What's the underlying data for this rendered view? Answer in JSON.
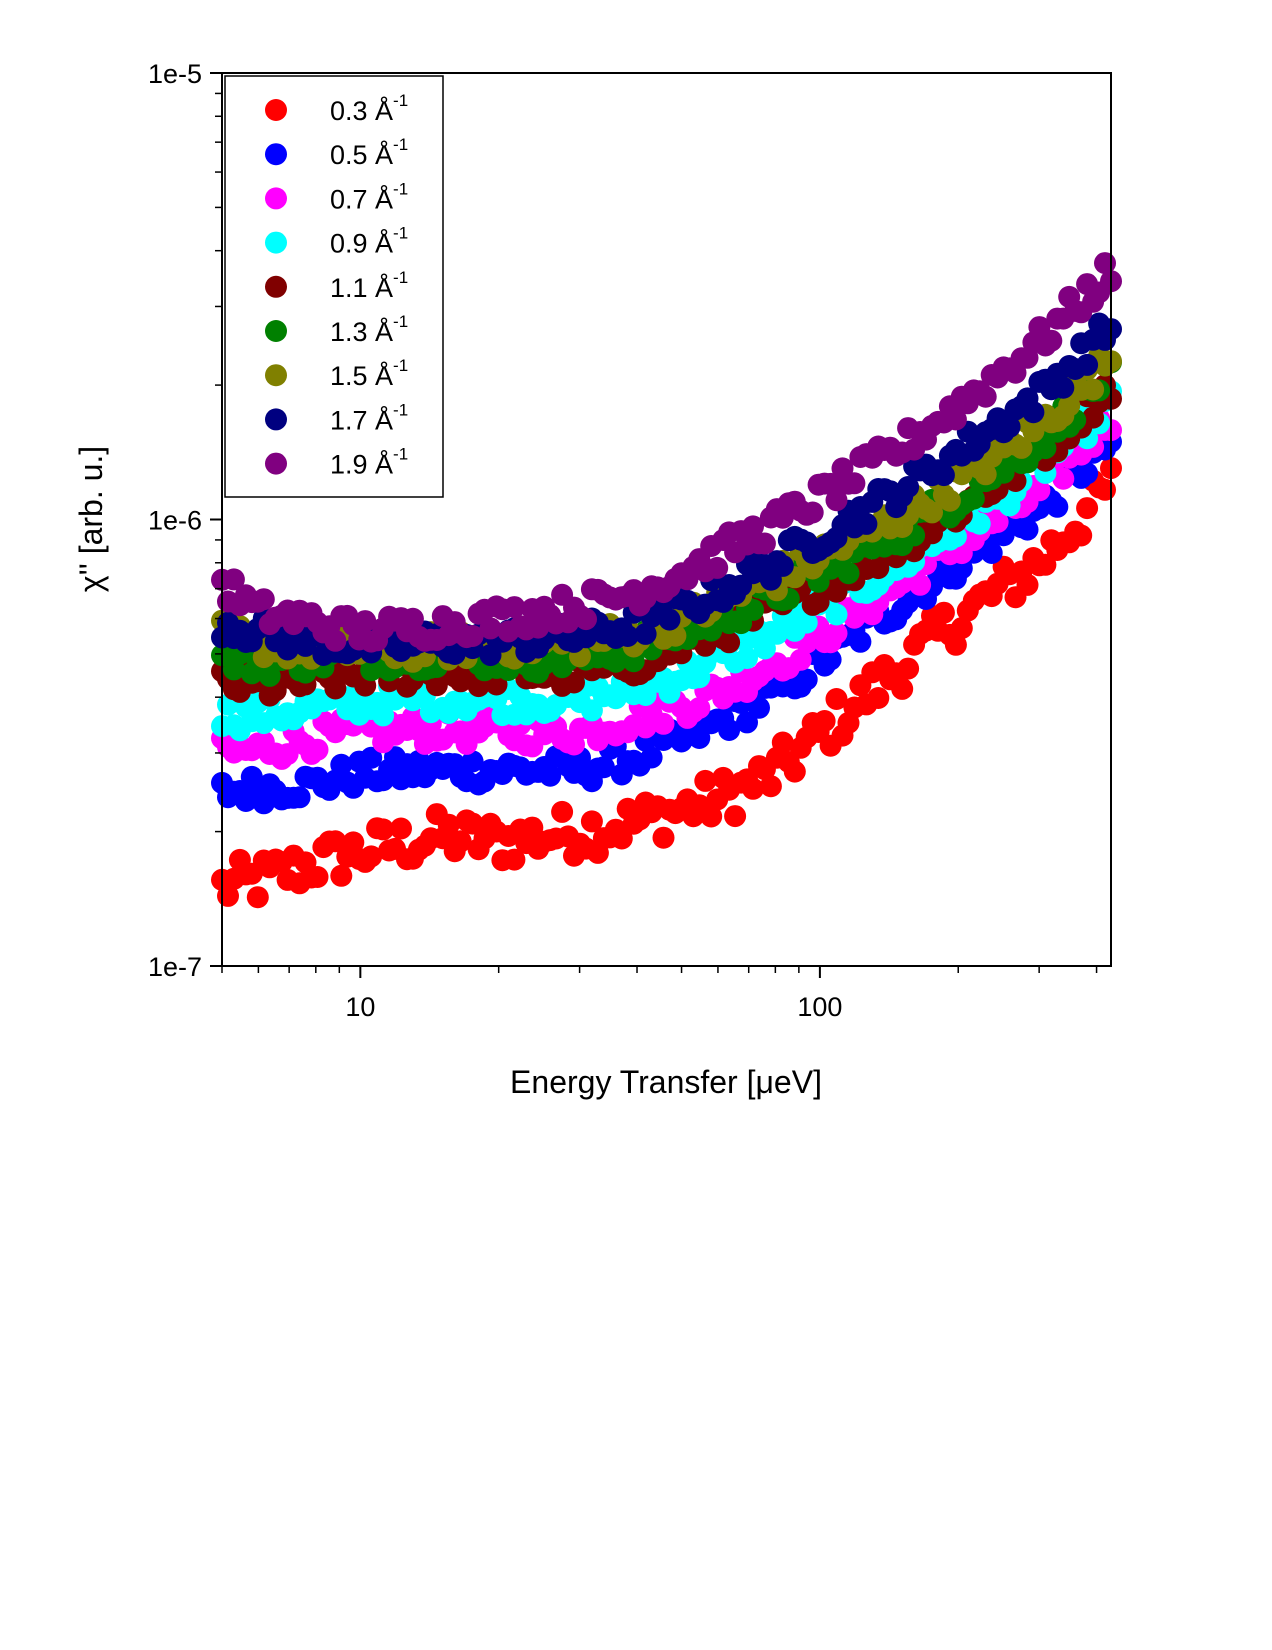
{
  "chart_data": {
    "type": "scatter",
    "xlabel": "Energy Transfer [μeV]",
    "ylabel": "χ'' [arb. u.]",
    "x_scale": "log",
    "y_scale": "log",
    "xlim": [
      5,
      430
    ],
    "ylim": [
      1e-07,
      1e-05
    ],
    "x_ticks": [
      10,
      100
    ],
    "x_tick_labels": [
      "10",
      "100"
    ],
    "y_ticks": [
      1e-07,
      1e-06,
      1e-05
    ],
    "y_tick_labels": [
      "1e-7",
      "1e-6",
      "1e-5"
    ],
    "grid": false,
    "legend_position": "top-left",
    "series": [
      {
        "name": "0.3 Å-1",
        "label_main": "0.3 Å",
        "label_sup": "-1",
        "color": "#ff0000",
        "x": [
          5,
          6,
          8,
          10,
          15,
          20,
          30,
          40,
          50,
          60,
          80,
          100,
          150,
          200,
          300,
          430
        ],
        "y": [
          1.5e-07,
          1.55e-07,
          1.7e-07,
          1.8e-07,
          1.95e-07,
          1.9e-07,
          2e-07,
          2.1e-07,
          2.25e-07,
          2.35e-07,
          2.7e-07,
          3.3e-07,
          4.7e-07,
          6e-07,
          8e-07,
          1.2e-06
        ]
      },
      {
        "name": "0.5 Å-1",
        "label_main": "0.5 Å",
        "label_sup": "-1",
        "color": "#0000ff",
        "x": [
          5,
          6,
          8,
          10,
          15,
          20,
          30,
          40,
          50,
          60,
          80,
          100,
          150,
          200,
          300,
          430
        ],
        "y": [
          2.45e-07,
          2.5e-07,
          2.55e-07,
          2.7e-07,
          2.75e-07,
          2.75e-07,
          2.75e-07,
          2.95e-07,
          3.2e-07,
          3.5e-07,
          4.1e-07,
          4.8e-07,
          6.5e-07,
          8e-07,
          1.05e-06,
          1.5e-06
        ]
      },
      {
        "name": "0.7 Å-1",
        "label_main": "0.7 Å",
        "label_sup": "-1",
        "color": "#ff00ff",
        "x": [
          5,
          6,
          8,
          10,
          15,
          20,
          30,
          40,
          50,
          60,
          80,
          100,
          150,
          200,
          300,
          430
        ],
        "y": [
          3e-07,
          3.05e-07,
          3.25e-07,
          3.35e-07,
          3.4e-07,
          3.35e-07,
          3.35e-07,
          3.6e-07,
          3.85e-07,
          4.1e-07,
          4.8e-07,
          5.5e-07,
          7.2e-07,
          8.8e-07,
          1.15e-06,
          1.7e-06
        ]
      },
      {
        "name": "0.9 Å-1",
        "label_main": "0.9 Å",
        "label_sup": "-1",
        "color": "#00ffff",
        "x": [
          5,
          6,
          8,
          10,
          15,
          20,
          30,
          40,
          50,
          60,
          80,
          100,
          150,
          200,
          300,
          430
        ],
        "y": [
          3.65e-07,
          3.65e-07,
          3.8e-07,
          3.9e-07,
          4e-07,
          3.95e-07,
          3.95e-07,
          4.2e-07,
          4.5e-07,
          4.85e-07,
          5.6e-07,
          6.3e-07,
          8e-07,
          9.6e-07,
          1.3e-06,
          1.85e-06
        ]
      },
      {
        "name": "1.1 Å-1",
        "label_main": "1.1 Å",
        "label_sup": "-1",
        "color": "#800000",
        "x": [
          5,
          6,
          8,
          10,
          15,
          20,
          30,
          40,
          50,
          60,
          80,
          100,
          150,
          200,
          300,
          430
        ],
        "y": [
          4.3e-07,
          4.2e-07,
          4.35e-07,
          4.5e-07,
          4.55e-07,
          4.55e-07,
          4.5e-07,
          4.8e-07,
          5.2e-07,
          5.6e-07,
          6.3e-07,
          7.1e-07,
          8.8e-07,
          1.05e-06,
          1.4e-06,
          2e-06
        ]
      },
      {
        "name": "1.3 Å-1",
        "label_main": "1.3 Å",
        "label_sup": "-1",
        "color": "#008000",
        "x": [
          5,
          6,
          8,
          10,
          15,
          20,
          30,
          40,
          50,
          60,
          80,
          100,
          150,
          200,
          300,
          430
        ],
        "y": [
          4.9e-07,
          4.8e-07,
          4.9e-07,
          4.95e-07,
          5e-07,
          4.9e-07,
          4.9e-07,
          5.2e-07,
          5.6e-07,
          6e-07,
          6.8e-07,
          7.6e-07,
          9.4e-07,
          1.12e-06,
          1.5e-06,
          2.15e-06
        ]
      },
      {
        "name": "1.5 Å-1",
        "label_main": "1.5 Å",
        "label_sup": "-1",
        "color": "#808000",
        "x": [
          5,
          6,
          8,
          10,
          15,
          20,
          30,
          40,
          50,
          60,
          80,
          100,
          150,
          200,
          300,
          430
        ],
        "y": [
          5.5e-07,
          5.3e-07,
          5.15e-07,
          5.1e-07,
          5.2e-07,
          5.25e-07,
          5.3e-07,
          5.6e-07,
          6e-07,
          6.5e-07,
          7.4e-07,
          8.3e-07,
          1.02e-06,
          1.22e-06,
          1.62e-06,
          2.3e-06
        ]
      },
      {
        "name": "1.7 Å-1",
        "label_main": "1.7 Å",
        "label_sup": "-1",
        "color": "#000080",
        "x": [
          5,
          6,
          8,
          10,
          15,
          20,
          30,
          40,
          50,
          60,
          80,
          100,
          150,
          200,
          300,
          430
        ],
        "y": [
          5.9e-07,
          5.6e-07,
          5.35e-07,
          5.2e-07,
          5.3e-07,
          5.35e-07,
          5.5e-07,
          5.85e-07,
          6.3e-07,
          6.9e-07,
          8e-07,
          9.2e-07,
          1.17e-06,
          1.42e-06,
          1.9e-06,
          2.7e-06
        ]
      },
      {
        "name": "1.9 Å-1",
        "label_main": "1.9 Å",
        "label_sup": "-1",
        "color": "#800080",
        "x": [
          5,
          6,
          8,
          10,
          15,
          20,
          30,
          40,
          50,
          60,
          80,
          100,
          150,
          200,
          300,
          430
        ],
        "y": [
          7.2e-07,
          6.2e-07,
          5.9e-07,
          5.6e-07,
          5.8e-07,
          6e-07,
          6.4e-07,
          6.9e-07,
          7.6e-07,
          8.4e-07,
          9.8e-07,
          1.12e-06,
          1.45e-06,
          1.8e-06,
          2.5e-06,
          3.6e-06
        ]
      }
    ]
  }
}
